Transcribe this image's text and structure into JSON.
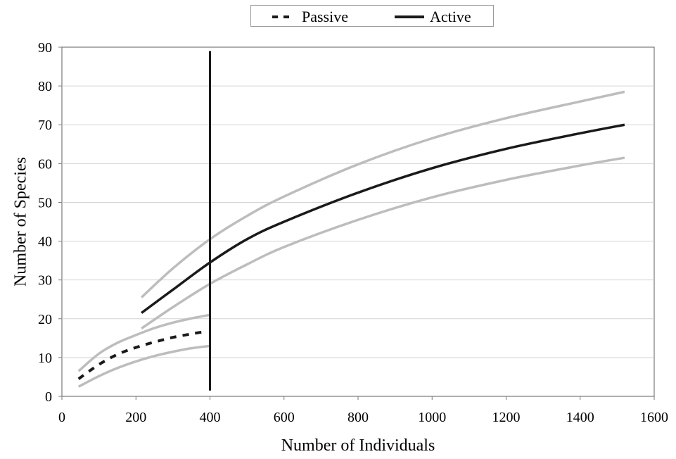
{
  "chart_data": {
    "type": "line",
    "xlabel": "Number of Individuals",
    "ylabel": "Number of Species",
    "xlim": [
      0,
      1600
    ],
    "ylim": [
      0,
      90
    ],
    "xticks": [
      0,
      200,
      400,
      600,
      800,
      1000,
      1200,
      1400,
      1600
    ],
    "yticks": [
      0,
      10,
      20,
      30,
      40,
      50,
      60,
      70,
      80,
      90
    ],
    "grid": "horizontal",
    "legend_position": "top-center",
    "legend": [
      {
        "label": "Passive",
        "style": "dashed",
        "color": "#1a1a1a"
      },
      {
        "label": "Active",
        "style": "solid",
        "color": "#1a1a1a"
      }
    ],
    "series": [
      {
        "name": "Passive",
        "style": "dashed",
        "color": "#1a1a1a",
        "x": [
          45,
          100,
          150,
          200,
          250,
          300,
          350,
          380
        ],
        "y": [
          4.5,
          8.2,
          10.8,
          12.6,
          14.0,
          15.2,
          16.1,
          16.6
        ]
      },
      {
        "name": "Passive upper bound",
        "style": "confidence",
        "color": "#bdbdbd",
        "x": [
          45,
          100,
          150,
          200,
          250,
          300,
          350,
          400
        ],
        "y": [
          6.5,
          11.0,
          13.8,
          15.8,
          17.6,
          19.0,
          20.1,
          21.0
        ]
      },
      {
        "name": "Passive lower bound",
        "style": "confidence",
        "color": "#bdbdbd",
        "x": [
          45,
          100,
          150,
          200,
          250,
          300,
          350,
          400
        ],
        "y": [
          2.5,
          5.2,
          7.3,
          9.0,
          10.4,
          11.5,
          12.4,
          13.0
        ]
      },
      {
        "name": "Active",
        "style": "solid",
        "color": "#1a1a1a",
        "x": [
          215,
          300,
          400,
          500,
          600,
          800,
          1000,
          1200,
          1400,
          1520
        ],
        "y": [
          21.5,
          27.5,
          34.5,
          40.5,
          45.0,
          52.5,
          58.8,
          63.8,
          67.8,
          70.0
        ]
      },
      {
        "name": "Active upper bound",
        "style": "confidence",
        "color": "#bdbdbd",
        "x": [
          215,
          300,
          400,
          500,
          600,
          800,
          1000,
          1200,
          1400,
          1520
        ],
        "y": [
          25.5,
          33.0,
          40.5,
          46.5,
          51.5,
          59.8,
          66.5,
          71.7,
          76.0,
          78.5
        ]
      },
      {
        "name": "Active lower bound",
        "style": "confidence",
        "color": "#bdbdbd",
        "x": [
          215,
          300,
          400,
          500,
          600,
          800,
          1000,
          1200,
          1400,
          1520
        ],
        "y": [
          17.5,
          23.0,
          29.0,
          34.0,
          38.5,
          45.5,
          51.3,
          55.8,
          59.5,
          61.5
        ]
      }
    ],
    "reference_line": {
      "x": 400,
      "y": [
        1.5,
        89
      ],
      "color": "#1a1a1a"
    }
  }
}
